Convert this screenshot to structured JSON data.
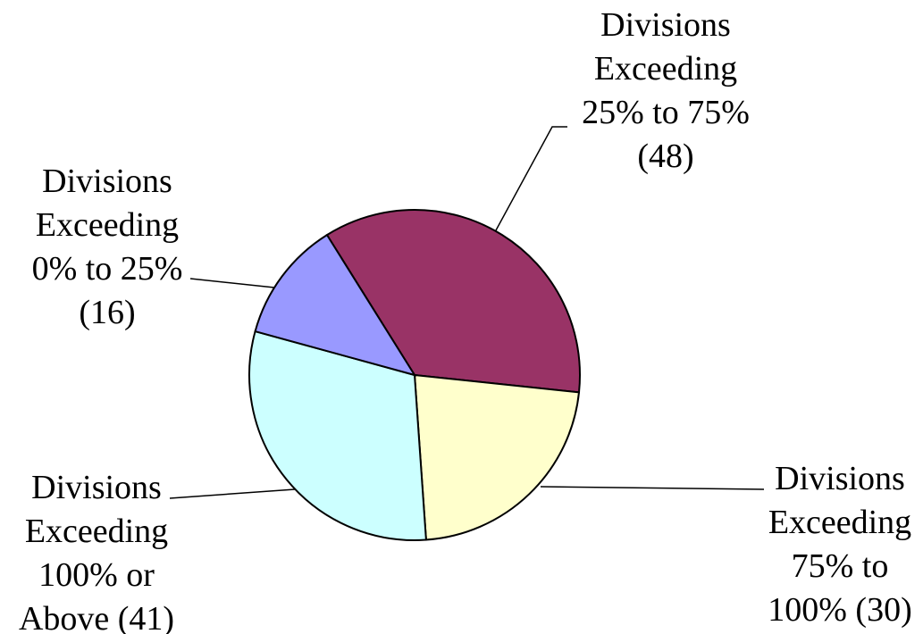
{
  "chart_data": {
    "type": "pie",
    "title": "",
    "slices": [
      {
        "lines": [
          "Divisions",
          "Exceeding",
          "25% to 75%",
          "(48)"
        ],
        "value": 48,
        "color": "#993366"
      },
      {
        "lines": [
          "Divisions",
          "Exceeding",
          "75% to",
          "100% (30)"
        ],
        "value": 30,
        "color": "#ffffcc"
      },
      {
        "lines": [
          "Divisions",
          "Exceeding",
          "100% or",
          "Above (41)"
        ],
        "value": 41,
        "color": "#ccffff"
      },
      {
        "lines": [
          "Divisions",
          "Exceeding",
          "0% to 25%",
          "(16)"
        ],
        "value": 16,
        "color": "#9999ff"
      }
    ]
  }
}
